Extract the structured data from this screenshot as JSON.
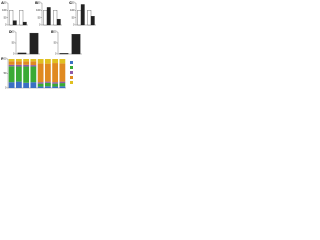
{
  "chart_data": [
    {
      "type": "bar",
      "label": "A",
      "categories": [
        null,
        null
      ],
      "series": [
        {
          "color": "#ffffff",
          "values": [
            100,
            100
          ]
        },
        {
          "color": "#222222",
          "values": [
            30,
            20
          ]
        }
      ],
      "ylim": [
        0,
        150
      ],
      "yticks": [
        0,
        50,
        100,
        150
      ]
    },
    {
      "type": "bar",
      "label": "B",
      "categories": [
        null,
        null
      ],
      "series": [
        {
          "color": "#ffffff",
          "values": [
            100,
            100
          ]
        },
        {
          "color": "#222222",
          "values": [
            120,
            40
          ]
        }
      ],
      "ylim": [
        0,
        150
      ],
      "yticks": [
        0,
        50,
        100,
        150
      ]
    },
    {
      "type": "bar",
      "label": "C",
      "categories": [
        null,
        null
      ],
      "series": [
        {
          "color": "#ffffff",
          "values": [
            100,
            100
          ]
        },
        {
          "color": "#222222",
          "values": [
            140,
            60
          ]
        }
      ],
      "ylim": [
        0,
        150
      ],
      "yticks": [
        0,
        50,
        100,
        150
      ]
    },
    {
      "type": "bar",
      "label": "D",
      "categories": [
        null,
        null
      ],
      "series": [
        {
          "color": "#222222",
          "values": [
            5,
            95
          ]
        }
      ],
      "ylim": [
        0,
        100
      ],
      "yticks": [
        0,
        50,
        100
      ]
    },
    {
      "type": "bar",
      "label": "E",
      "categories": [
        null,
        null
      ],
      "series": [
        {
          "color": "#222222",
          "values": [
            3,
            90
          ]
        }
      ],
      "ylim": [
        0,
        100
      ],
      "yticks": [
        0,
        50,
        100
      ]
    },
    {
      "type": "stacked_bar",
      "label": "F",
      "categories": [
        null,
        null,
        null,
        null,
        null,
        null,
        null,
        null
      ],
      "series": [
        {
          "color": "#3a6fc4",
          "values": [
            20,
            22,
            18,
            20,
            5,
            6,
            5,
            6
          ]
        },
        {
          "color": "#3aaa35",
          "values": [
            55,
            52,
            56,
            54,
            10,
            12,
            10,
            11
          ]
        },
        {
          "color": "#8e5aa8",
          "values": [
            5,
            6,
            6,
            5,
            5,
            4,
            5,
            5
          ]
        },
        {
          "color": "#e08a20",
          "values": [
            12,
            12,
            12,
            13,
            65,
            62,
            66,
            63
          ]
        },
        {
          "color": "#e0c020",
          "values": [
            8,
            8,
            8,
            8,
            15,
            16,
            14,
            15
          ]
        }
      ],
      "ylim": [
        0,
        100
      ],
      "yticks": [
        0,
        50,
        100
      ]
    }
  ]
}
